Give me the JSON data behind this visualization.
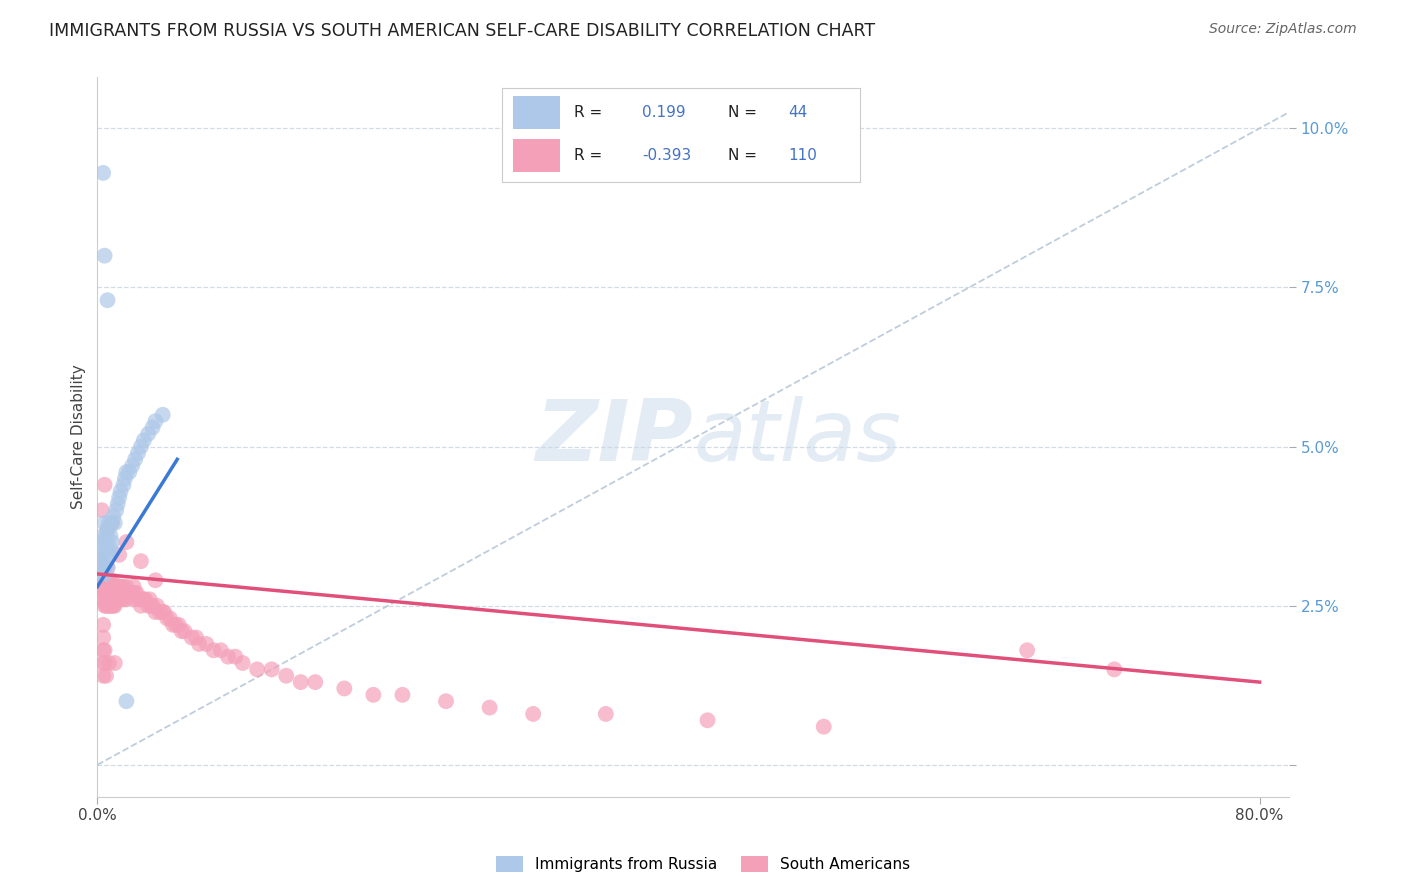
{
  "title": "IMMIGRANTS FROM RUSSIA VS SOUTH AMERICAN SELF-CARE DISABILITY CORRELATION CHART",
  "source": "Source: ZipAtlas.com",
  "ylabel": "Self-Care Disability",
  "yticks": [
    0.0,
    0.025,
    0.05,
    0.075,
    0.1
  ],
  "ytick_labels": [
    "",
    "2.5%",
    "5.0%",
    "7.5%",
    "10.0%"
  ],
  "xlim": [
    0.0,
    0.82
  ],
  "ylim": [
    -0.005,
    0.108
  ],
  "color_russia": "#adc8e8",
  "color_sa": "#f4a0b8",
  "color_russia_line": "#3a7ad4",
  "color_sa_line": "#e0507a",
  "color_diag_line": "#b8c8d8",
  "background": "#ffffff",
  "watermark_zip": "ZIP",
  "watermark_atlas": "atlas",
  "legend_box_color": "#e8eff8",
  "legend_box_sa_color": "#fce4ec",
  "russia_x": [
    0.001,
    0.002,
    0.002,
    0.003,
    0.003,
    0.004,
    0.004,
    0.005,
    0.005,
    0.006,
    0.006,
    0.006,
    0.007,
    0.007,
    0.007,
    0.008,
    0.008,
    0.009,
    0.009,
    0.01,
    0.01,
    0.011,
    0.012,
    0.013,
    0.014,
    0.015,
    0.016,
    0.018,
    0.019,
    0.02,
    0.022,
    0.024,
    0.026,
    0.028,
    0.03,
    0.032,
    0.035,
    0.038,
    0.04,
    0.045,
    0.004,
    0.005,
    0.007,
    0.02
  ],
  "russia_y": [
    0.03,
    0.031,
    0.033,
    0.034,
    0.032,
    0.035,
    0.036,
    0.038,
    0.03,
    0.033,
    0.035,
    0.036,
    0.031,
    0.034,
    0.037,
    0.033,
    0.038,
    0.034,
    0.036,
    0.035,
    0.038,
    0.039,
    0.038,
    0.04,
    0.041,
    0.042,
    0.043,
    0.044,
    0.045,
    0.046,
    0.046,
    0.047,
    0.048,
    0.049,
    0.05,
    0.051,
    0.052,
    0.053,
    0.054,
    0.055,
    0.093,
    0.08,
    0.073,
    0.01
  ],
  "sa_x": [
    0.001,
    0.001,
    0.002,
    0.002,
    0.002,
    0.003,
    0.003,
    0.003,
    0.004,
    0.004,
    0.004,
    0.005,
    0.005,
    0.005,
    0.005,
    0.006,
    0.006,
    0.006,
    0.007,
    0.007,
    0.007,
    0.007,
    0.008,
    0.008,
    0.008,
    0.009,
    0.009,
    0.01,
    0.01,
    0.01,
    0.011,
    0.011,
    0.012,
    0.012,
    0.013,
    0.013,
    0.014,
    0.014,
    0.015,
    0.015,
    0.016,
    0.016,
    0.017,
    0.018,
    0.018,
    0.019,
    0.02,
    0.02,
    0.021,
    0.022,
    0.023,
    0.024,
    0.025,
    0.025,
    0.026,
    0.027,
    0.028,
    0.03,
    0.031,
    0.032,
    0.033,
    0.035,
    0.036,
    0.037,
    0.038,
    0.04,
    0.041,
    0.043,
    0.045,
    0.046,
    0.048,
    0.05,
    0.052,
    0.054,
    0.056,
    0.058,
    0.06,
    0.065,
    0.068,
    0.07,
    0.075,
    0.08,
    0.085,
    0.09,
    0.095,
    0.1,
    0.11,
    0.12,
    0.13,
    0.14,
    0.15,
    0.17,
    0.19,
    0.21,
    0.24,
    0.27,
    0.3,
    0.35,
    0.42,
    0.5,
    0.003,
    0.005,
    0.007,
    0.01,
    0.015,
    0.02,
    0.03,
    0.04,
    0.64,
    0.7,
    0.004,
    0.004,
    0.004,
    0.004,
    0.004,
    0.005,
    0.005,
    0.006,
    0.008,
    0.012
  ],
  "sa_y": [
    0.03,
    0.028,
    0.028,
    0.03,
    0.032,
    0.026,
    0.028,
    0.03,
    0.026,
    0.028,
    0.03,
    0.025,
    0.027,
    0.029,
    0.031,
    0.025,
    0.027,
    0.029,
    0.025,
    0.027,
    0.029,
    0.031,
    0.025,
    0.027,
    0.029,
    0.025,
    0.027,
    0.025,
    0.027,
    0.029,
    0.025,
    0.027,
    0.025,
    0.027,
    0.026,
    0.028,
    0.026,
    0.028,
    0.026,
    0.028,
    0.026,
    0.028,
    0.027,
    0.026,
    0.028,
    0.027,
    0.026,
    0.028,
    0.027,
    0.027,
    0.027,
    0.027,
    0.026,
    0.028,
    0.027,
    0.027,
    0.026,
    0.025,
    0.026,
    0.026,
    0.026,
    0.025,
    0.026,
    0.025,
    0.025,
    0.024,
    0.025,
    0.024,
    0.024,
    0.024,
    0.023,
    0.023,
    0.022,
    0.022,
    0.022,
    0.021,
    0.021,
    0.02,
    0.02,
    0.019,
    0.019,
    0.018,
    0.018,
    0.017,
    0.017,
    0.016,
    0.015,
    0.015,
    0.014,
    0.013,
    0.013,
    0.012,
    0.011,
    0.011,
    0.01,
    0.009,
    0.008,
    0.008,
    0.007,
    0.006,
    0.04,
    0.044,
    0.037,
    0.038,
    0.033,
    0.035,
    0.032,
    0.029,
    0.018,
    0.015,
    0.022,
    0.02,
    0.018,
    0.016,
    0.014,
    0.018,
    0.016,
    0.014,
    0.016,
    0.016
  ],
  "russia_trend_x": [
    0.0,
    0.055
  ],
  "russia_trend_y": [
    0.028,
    0.048
  ],
  "sa_trend_x": [
    0.0,
    0.8
  ],
  "sa_trend_y": [
    0.03,
    0.013
  ]
}
